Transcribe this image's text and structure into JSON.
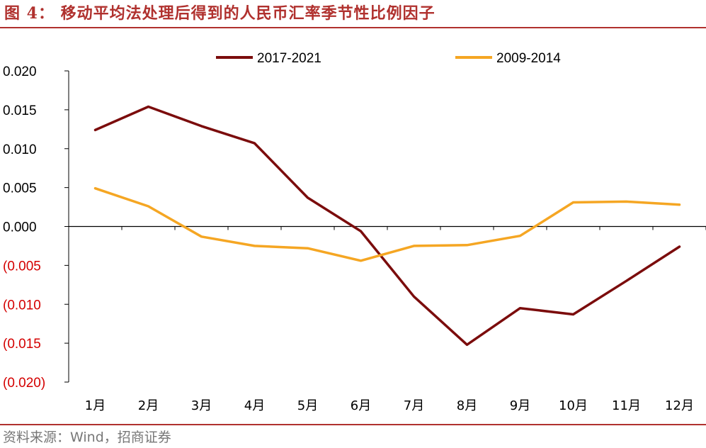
{
  "title": "图 4：  移动平均法处理后得到的人民币汇率季节性比例因子",
  "source": "资料来源：Wind，招商证券",
  "chart_data": {
    "type": "line",
    "categories": [
      "1月",
      "2月",
      "3月",
      "4月",
      "5月",
      "6月",
      "7月",
      "8月",
      "9月",
      "10月",
      "11月",
      "12月"
    ],
    "series": [
      {
        "name": "2017-2021",
        "color": "#7b0c0c",
        "values": [
          0.0124,
          0.0154,
          0.0129,
          0.0107,
          0.0037,
          -0.0006,
          -0.009,
          -0.0152,
          -0.0105,
          -0.0113,
          -0.007,
          -0.0026
        ]
      },
      {
        "name": "2009-2014",
        "color": "#f5a623",
        "values": [
          0.0049,
          0.0026,
          -0.0013,
          -0.0025,
          -0.0028,
          -0.0044,
          -0.0025,
          -0.0024,
          -0.0012,
          0.0031,
          0.0032,
          0.0028
        ]
      }
    ],
    "ylim": [
      -0.02,
      0.02
    ],
    "yticks": [
      0.02,
      0.015,
      0.01,
      0.005,
      0.0,
      -0.005,
      -0.01,
      -0.015,
      -0.02
    ],
    "ytick_labels": [
      "0.020",
      "0.015",
      "0.010",
      "0.005",
      "0.000",
      "(0.005",
      "(0.010",
      "(0.015",
      "(0.020)"
    ],
    "negative_label_color": "#d40000",
    "legend_position": "top",
    "grid": false
  }
}
